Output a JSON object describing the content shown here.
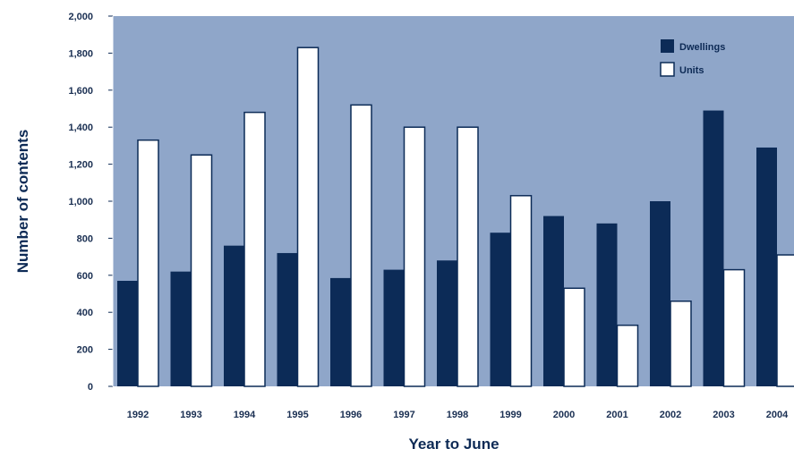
{
  "chart_data": {
    "type": "bar",
    "xlabel": "Year to June",
    "ylabel": "Number of contents",
    "ylim": [
      0,
      2000
    ],
    "yticks": [
      "0",
      "200",
      "400",
      "600",
      "800",
      "1,000",
      "1,200",
      "1,400",
      "1,600",
      "1,800",
      "2,000"
    ],
    "categories": [
      "1992",
      "1993",
      "1994",
      "1995",
      "1996",
      "1997",
      "1998",
      "1999",
      "2000",
      "2001",
      "2002",
      "2003",
      "2004"
    ],
    "series": [
      {
        "name": "Dwellings",
        "values": [
          570,
          620,
          760,
          720,
          585,
          630,
          680,
          830,
          920,
          880,
          1000,
          1490,
          1290
        ]
      },
      {
        "name": "Units",
        "values": [
          1330,
          1250,
          1480,
          1830,
          1520,
          1400,
          1400,
          1030,
          530,
          330,
          460,
          630,
          710
        ]
      }
    ],
    "legend_position": "top-right",
    "grid": false
  },
  "colors": {
    "plot_background": "#8fa6c9",
    "dwellings": "#0c2b57",
    "units": "#ffffff",
    "text": "#0d2a55"
  }
}
